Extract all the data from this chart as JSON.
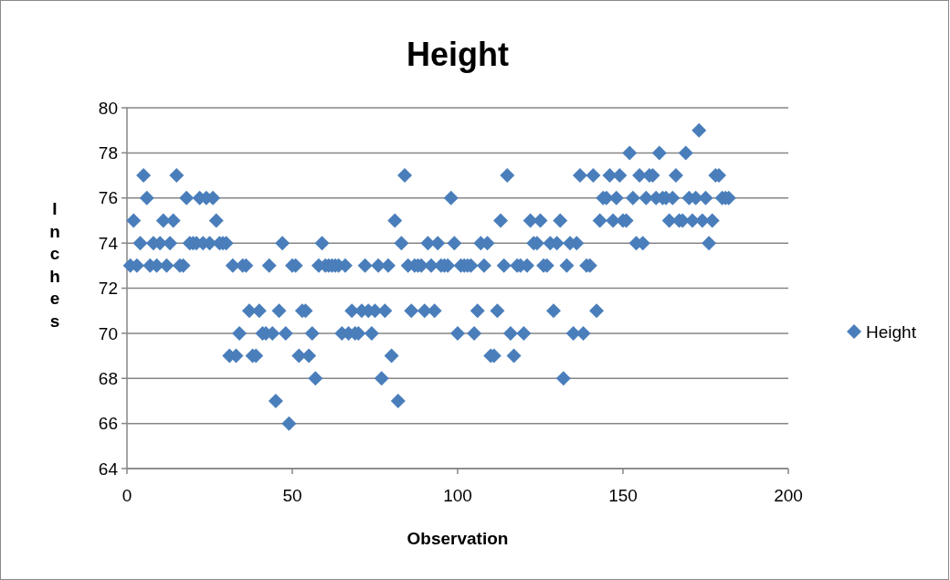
{
  "chart_data": {
    "type": "scatter",
    "title": "Height",
    "xlabel": "Observation",
    "ylabel": "Inches",
    "xlim": [
      0,
      200
    ],
    "xticks": [
      0,
      50,
      100,
      150,
      200
    ],
    "ylim": [
      64,
      80
    ],
    "yticks": [
      64,
      66,
      68,
      70,
      72,
      74,
      76,
      78,
      80
    ],
    "grid": "y",
    "legend": "right",
    "marker": "diamond",
    "series": [
      {
        "name": "Height",
        "color": "#4a7ebb",
        "x": [
          1,
          2,
          3,
          4,
          5,
          6,
          7,
          8,
          9,
          10,
          11,
          12,
          13,
          14,
          15,
          16,
          17,
          18,
          19,
          20,
          21,
          22,
          23,
          24,
          25,
          26,
          27,
          28,
          29,
          30,
          31,
          32,
          33,
          34,
          35,
          36,
          37,
          38,
          39,
          40,
          41,
          42,
          43,
          44,
          45,
          46,
          47,
          48,
          49,
          50,
          51,
          52,
          53,
          54,
          55,
          56,
          57,
          58,
          59,
          60,
          61,
          62,
          63,
          64,
          65,
          66,
          67,
          68,
          69,
          70,
          71,
          72,
          73,
          74,
          75,
          76,
          77,
          78,
          79,
          80,
          81,
          82,
          83,
          84,
          85,
          86,
          87,
          88,
          89,
          90,
          91,
          92,
          93,
          94,
          95,
          96,
          97,
          98,
          99,
          100,
          101,
          102,
          103,
          104,
          105,
          106,
          107,
          108,
          109,
          110,
          111,
          112,
          113,
          114,
          115,
          116,
          117,
          118,
          119,
          120,
          121,
          122,
          123,
          124,
          125,
          126,
          127,
          128,
          129,
          130,
          131,
          132,
          133,
          134,
          135,
          136,
          137,
          138,
          139,
          140,
          141,
          142,
          143,
          144,
          145,
          146,
          147,
          148,
          149,
          150,
          151,
          152,
          153,
          154,
          155,
          156,
          157,
          158,
          159,
          160,
          161,
          162,
          163,
          164,
          165,
          166,
          167,
          168,
          169,
          170,
          171,
          172,
          173,
          174,
          175,
          176,
          177,
          178,
          179,
          180,
          181,
          182
        ],
        "values": [
          73,
          75,
          73,
          74,
          77,
          76,
          73,
          74,
          73,
          74,
          75,
          73,
          74,
          75,
          77,
          73,
          73,
          76,
          74,
          74,
          74,
          76,
          74,
          76,
          74,
          76,
          75,
          74,
          74,
          74,
          69,
          73,
          69,
          70,
          73,
          73,
          71,
          69,
          69,
          71,
          70,
          70,
          73,
          70,
          67,
          71,
          74,
          70,
          66,
          73,
          73,
          69,
          71,
          71,
          69,
          70,
          68,
          73,
          74,
          73,
          73,
          73,
          73,
          73,
          70,
          73,
          70,
          71,
          70,
          70,
          71,
          73,
          71,
          70,
          71,
          73,
          68,
          71,
          73,
          69,
          75,
          67,
          74,
          77,
          73,
          71,
          73,
          73,
          73,
          71,
          74,
          73,
          71,
          74,
          73,
          73,
          73,
          76,
          74,
          70,
          73,
          73,
          73,
          73,
          70,
          71,
          74,
          73,
          74,
          69,
          69,
          71,
          75,
          73,
          77,
          70,
          69,
          73,
          73,
          70,
          73,
          75,
          74,
          74,
          75,
          73,
          73,
          74,
          71,
          74,
          75,
          68,
          73,
          74,
          70,
          74,
          77,
          70,
          73,
          73,
          77,
          71,
          75,
          76,
          76,
          77,
          75,
          76,
          77,
          75,
          75,
          78,
          76,
          74,
          77,
          74,
          76,
          77,
          77,
          76,
          78,
          76,
          76,
          75,
          76,
          77,
          75,
          75,
          78,
          76,
          75,
          76,
          79,
          75,
          76,
          74,
          75,
          77,
          77,
          76,
          76,
          76
        ]
      }
    ]
  }
}
